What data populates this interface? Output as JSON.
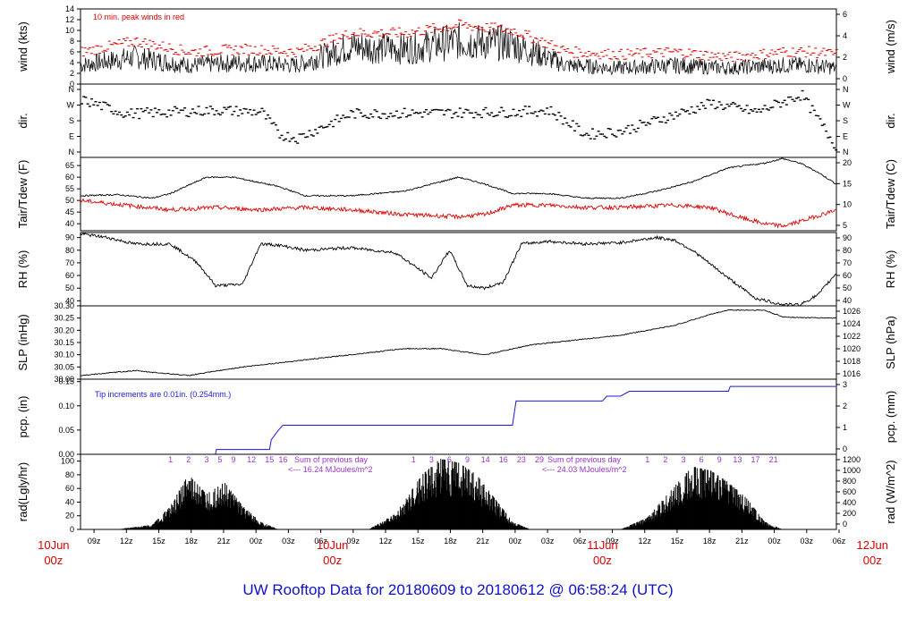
{
  "title": "UW Rooftop Data for 20180609  to  20180612 @ 06:58:24  (UTC)",
  "colors": {
    "main": "#000000",
    "peak": "#e00000",
    "dew": "#e00000",
    "pcp": "#1a1ad8",
    "sun": "#9932cc",
    "date": "#e00000",
    "title": "#1010cc"
  },
  "x_ticks": [
    "09z",
    "12z",
    "15z",
    "18z",
    "21z",
    "00z",
    "03z",
    "06z",
    "09z",
    "12z",
    "15z",
    "18z",
    "21z",
    "00z",
    "03z",
    "06z",
    "09z",
    "12z",
    "15z",
    "18z",
    "21z",
    "00z",
    "03z",
    "06z"
  ],
  "date_labels": [
    {
      "day": "10Jun",
      "time": "00z"
    },
    {
      "day": "10Jun",
      "time": "00z"
    },
    {
      "day": "11Jun",
      "time": "00z"
    },
    {
      "day": "12Jun",
      "time": "00z"
    }
  ],
  "chart_data": [
    {
      "type": "line",
      "panel": "wind",
      "ylabel_left": "wind (kts)",
      "ylabel_right": "wind (m/s)",
      "annotation": "10 min. peak winds in red",
      "yticks_left": [
        "0",
        "2",
        "4",
        "6",
        "8",
        "10",
        "12",
        "14"
      ],
      "yticks_right": [
        "0",
        "2",
        "4",
        "6"
      ],
      "ylim": [
        0,
        14
      ],
      "series": [
        {
          "name": "wind",
          "x": [
            0,
            6,
            12,
            18,
            24,
            30,
            36,
            42,
            48,
            54,
            60,
            66,
            72,
            78,
            81,
            84
          ],
          "y": [
            3.5,
            5,
            3.5,
            4,
            3.5,
            7,
            6.5,
            8,
            7.5,
            3.5,
            3,
            3.5,
            3,
            3.5,
            3.5,
            3
          ]
        },
        {
          "name": "10 min. peak winds",
          "x": [
            0,
            6,
            12,
            18,
            24,
            30,
            36,
            42,
            48,
            54,
            60,
            66,
            72,
            78,
            81,
            84
          ],
          "y": [
            6,
            8,
            6,
            6.5,
            6,
            9.5,
            9.5,
            11,
            10,
            6,
            5.5,
            6,
            5,
            6,
            6,
            5.5
          ]
        }
      ]
    },
    {
      "type": "scatter",
      "panel": "dir",
      "ylabel_left": "dir.",
      "ylabel_right": "dir.",
      "yticks_left": [
        "N",
        "W",
        "S",
        "E",
        "N"
      ],
      "yticks_right": [
        "N",
        "W",
        "S",
        "E",
        "N"
      ],
      "series": [
        {
          "name": "direction",
          "x": [
            0,
            5,
            10,
            15,
            20,
            22,
            24,
            30,
            40,
            48,
            52,
            56,
            60,
            65,
            70,
            75,
            80,
            84
          ],
          "y": [
            300,
            220,
            230,
            240,
            230,
            100,
            80,
            220,
            225,
            230,
            240,
            100,
            120,
            200,
            280,
            230,
            330,
            20
          ]
        }
      ]
    },
    {
      "type": "line",
      "panel": "temperature",
      "ylabel_left": "Tair/Tdew (F)",
      "ylabel_right": "Tair/Tdew (C)",
      "yticks_left": [
        "40",
        "45",
        "50",
        "55",
        "60",
        "65"
      ],
      "yticks_right": [
        "5",
        "10",
        "15",
        "20"
      ],
      "ylim": [
        37,
        68.5
      ],
      "series": [
        {
          "name": "Tair",
          "x": [
            0,
            4,
            8,
            10,
            14,
            17,
            22,
            25,
            30,
            36,
            42,
            45,
            48,
            52,
            56,
            60,
            64,
            68,
            72,
            76,
            78,
            80,
            82,
            84
          ],
          "y": [
            52,
            52.5,
            51,
            53,
            60,
            60,
            56,
            52,
            52,
            54,
            60,
            57,
            53,
            53,
            51,
            51,
            54,
            58,
            64,
            66,
            68,
            66,
            62,
            57
          ]
        },
        {
          "name": "Tdew",
          "x": [
            0,
            5,
            10,
            15,
            20,
            25,
            30,
            36,
            42,
            45,
            48,
            52,
            56,
            60,
            66,
            70,
            73,
            76,
            78,
            80,
            84
          ],
          "y": [
            50,
            48,
            46,
            47,
            46,
            47,
            46,
            44,
            43,
            44,
            48,
            48,
            47,
            47,
            48,
            47,
            43,
            40,
            39,
            41,
            46
          ]
        }
      ]
    },
    {
      "type": "line",
      "panel": "rh",
      "ylabel_left": "RH (%)",
      "ylabel_right": "RH (%)",
      "yticks_left": [
        "40",
        "50",
        "60",
        "70",
        "80",
        "90"
      ],
      "yticks_right": [
        "40",
        "50",
        "60",
        "70",
        "80",
        "90"
      ],
      "ylim": [
        36,
        94
      ],
      "series": [
        {
          "name": "RH",
          "x": [
            0,
            3,
            6,
            10,
            13,
            15,
            18,
            20,
            22,
            25,
            30,
            35,
            39,
            41,
            43,
            45,
            47,
            49,
            52,
            56,
            60,
            64,
            66,
            68,
            72,
            75,
            78,
            80,
            82,
            84
          ],
          "y": [
            93,
            90,
            85,
            85,
            70,
            52,
            53,
            85,
            84,
            80,
            82,
            78,
            58,
            80,
            52,
            50,
            55,
            85,
            87,
            85,
            86,
            90,
            88,
            80,
            58,
            42,
            37,
            37,
            45,
            62
          ]
        }
      ]
    },
    {
      "type": "line",
      "panel": "slp",
      "ylabel_left": "SLP (inHg)",
      "ylabel_right": "SLP (hPa)",
      "yticks_left": [
        "30.00",
        "30.05",
        "30.10",
        "30.15",
        "30.20",
        "30.25",
        "30.30"
      ],
      "yticks_right": [
        "1016",
        "1018",
        "1020",
        "1022",
        "1024",
        "1026"
      ],
      "ylim": [
        30.0,
        30.3
      ],
      "series": [
        {
          "name": "SLP",
          "x": [
            0,
            6,
            12,
            18,
            24,
            30,
            36,
            40,
            45,
            50,
            55,
            60,
            66,
            70,
            72,
            76,
            78,
            80,
            84
          ],
          "y": [
            30.015,
            30.035,
            30.015,
            30.05,
            30.075,
            30.1,
            30.125,
            30.125,
            30.1,
            30.14,
            30.16,
            30.18,
            30.22,
            30.265,
            30.283,
            30.282,
            30.255,
            30.252,
            30.25
          ]
        }
      ]
    },
    {
      "type": "line",
      "panel": "pcp",
      "ylabel_left": "pcp. (in)",
      "ylabel_right": "pcp. (mm)",
      "annotation": "Tip increments are 0.01in. (0.254mm.)",
      "yticks_left": [
        "0.00",
        "0.05",
        "0.10",
        "0.15"
      ],
      "yticks_right": [
        "0",
        "1",
        "2",
        "3"
      ],
      "ylim": [
        0,
        0.155
      ],
      "series": [
        {
          "name": "precip",
          "x": [
            0,
            15,
            15.1,
            21,
            21.2,
            22,
            22.5,
            48,
            48.4,
            58,
            58.5,
            60,
            61,
            72,
            72.2,
            84
          ],
          "y": [
            0,
            0,
            0.01,
            0.01,
            0.03,
            0.05,
            0.06,
            0.06,
            0.11,
            0.11,
            0.12,
            0.12,
            0.13,
            0.13,
            0.14,
            0.14
          ]
        }
      ]
    },
    {
      "type": "area",
      "panel": "radiation",
      "ylabel_left": "rad(Lgly/hr)",
      "ylabel_right": "rad (W/m^2)",
      "yticks_left": [
        "0",
        "20",
        "40",
        "60",
        "80",
        "100"
      ],
      "yticks_right": [
        "0",
        "200",
        "400",
        "600",
        "800",
        "1000",
        "1200"
      ],
      "ylim": [
        0,
        110
      ],
      "annotations": [
        {
          "text": "Sum of previous day"
        },
        {
          "text": "<--- 16.24 MJoules/m^2"
        },
        {
          "text": "Sum of previous day"
        },
        {
          "text": "<--- 24.03 MJoules/m^2"
        }
      ],
      "hour_labels": [
        "1",
        "2",
        "3",
        "5",
        "9",
        "12",
        "15",
        "16",
        "1",
        "3",
        "6",
        "9",
        "14",
        "16",
        "23",
        "29",
        "1",
        "2",
        "3",
        "6",
        "9",
        "13",
        "17",
        "21"
      ],
      "series": [
        {
          "name": "day1",
          "x": [
            4,
            8,
            10,
            12,
            14,
            16,
            18,
            20,
            22
          ],
          "y": [
            0,
            6,
            30,
            70,
            45,
            60,
            30,
            10,
            0
          ]
        },
        {
          "name": "day2",
          "x": [
            32,
            35,
            38,
            40,
            42,
            44,
            46,
            48,
            50
          ],
          "y": [
            0,
            20,
            70,
            90,
            85,
            70,
            40,
            10,
            0
          ]
        },
        {
          "name": "day3",
          "x": [
            60,
            63,
            66,
            68,
            70,
            72,
            74,
            76,
            78
          ],
          "y": [
            0,
            15,
            55,
            80,
            75,
            60,
            40,
            10,
            0
          ]
        }
      ]
    }
  ]
}
